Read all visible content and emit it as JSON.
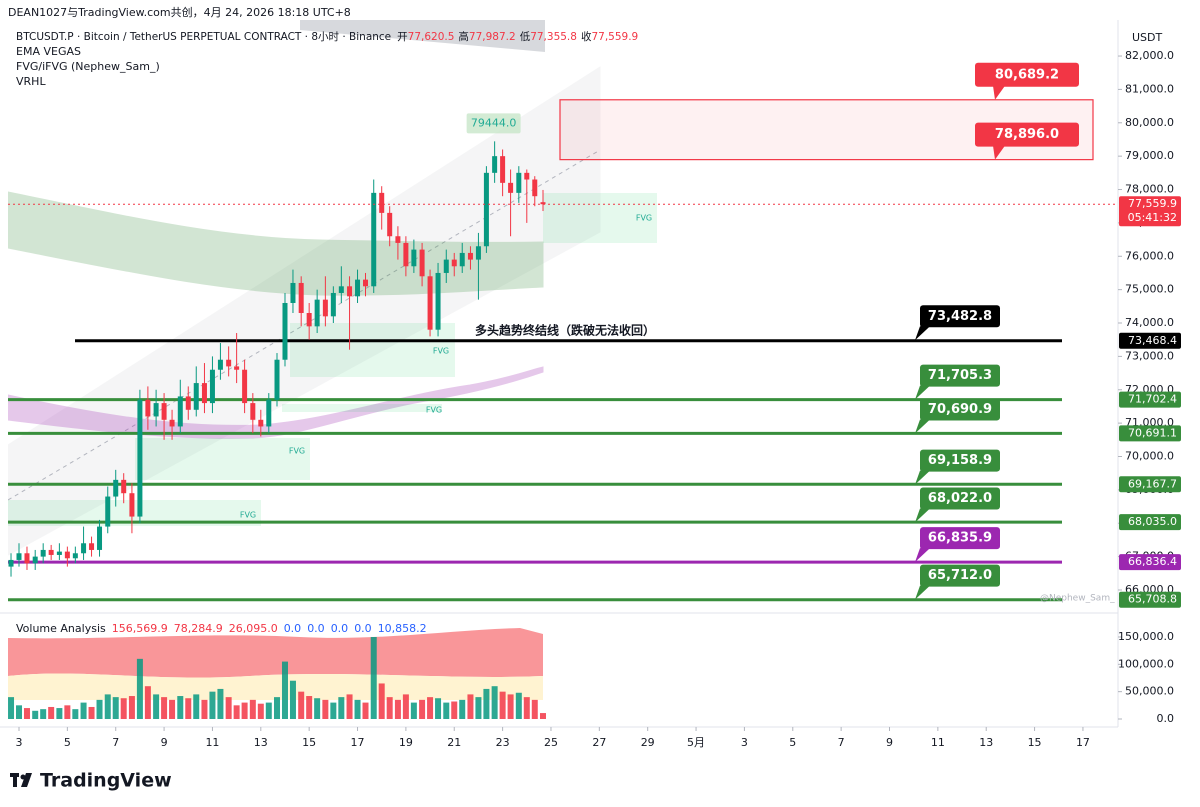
{
  "header": {
    "watermark": "DEAN1027与TradingView.com共创，4月 24, 2026 18:18 UTC+8",
    "symbol": "BTCUSDT.P · Bitcoin / TetherUS PERPETUAL CONTRACT · 8小时 · Binance",
    "ohlc": [
      {
        "label": "开",
        "value": "77,620.5"
      },
      {
        "label": "高",
        "value": "77,987.2"
      },
      {
        "label": "低",
        "value": "77,355.8"
      },
      {
        "label": "收",
        "value": "77,559.9"
      }
    ],
    "indicators": [
      "EMA VEGAS",
      "FVG/iFVG (Nephew_Sam_)",
      "VRHL"
    ],
    "currency": "USDT"
  },
  "chart_data": {
    "type": "candlestick",
    "up_color": "#089981",
    "down_color": "#f23645",
    "x": [
      2.67,
      3,
      3.33,
      3.67,
      4,
      4.33,
      4.67,
      5,
      5.33,
      5.67,
      6,
      6.33,
      6.67,
      7,
      7.33,
      7.67,
      8,
      8.33,
      8.67,
      9,
      9.33,
      9.67,
      10,
      10.33,
      10.67,
      11,
      11.33,
      11.67,
      12,
      12.33,
      12.67,
      13,
      13.33,
      13.67,
      14,
      14.33,
      14.67,
      15,
      15.33,
      15.67,
      16,
      16.33,
      16.67,
      17,
      17.33,
      17.67,
      18,
      18.33,
      18.67,
      19,
      19.33,
      19.67,
      20,
      20.33,
      20.67,
      21,
      21.33,
      21.67,
      22,
      22.33,
      22.67,
      23,
      23.33,
      23.67,
      24,
      24.33,
      24.67
    ],
    "open": [
      66700,
      66900,
      67100,
      66800,
      67000,
      67200,
      67050,
      67150,
      66950,
      67100,
      67400,
      67200,
      67900,
      68800,
      69300,
      68900,
      68200,
      71700,
      71200,
      71600,
      71100,
      70900,
      71800,
      71400,
      72200,
      71600,
      72600,
      72900,
      72700,
      72600,
      71600,
      71100,
      70900,
      71700,
      72900,
      74600,
      75200,
      74300,
      73900,
      74700,
      74200,
      74900,
      75100,
      74800,
      75300,
      75100,
      77900,
      77300,
      76600,
      76400,
      75700,
      76200,
      75400,
      73800,
      75500,
      75900,
      75700,
      76100,
      75900,
      76300,
      78500,
      79000,
      78200,
      77900,
      78500,
      78300,
      77620.5
    ],
    "high": [
      67100,
      67400,
      67300,
      67200,
      67400,
      67350,
      67400,
      67300,
      67300,
      67900,
      67600,
      68100,
      69100,
      69600,
      69500,
      69200,
      72000,
      72100,
      72000,
      71900,
      71400,
      72300,
      72100,
      72700,
      72800,
      73000,
      73400,
      73300,
      73700,
      72900,
      71900,
      71400,
      71900,
      73100,
      74900,
      75600,
      75400,
      74600,
      75000,
      75400,
      75100,
      75700,
      75400,
      75600,
      75500,
      78300,
      78100,
      77500,
      76900,
      76600,
      76500,
      76400,
      75600,
      75800,
      76200,
      76100,
      76400,
      76300,
      76700,
      78700,
      79444,
      79200,
      78600,
      78700,
      78600,
      78400,
      77987.2
    ],
    "low": [
      66400,
      66700,
      66600,
      66600,
      66800,
      66900,
      66900,
      66700,
      66800,
      66900,
      67000,
      67000,
      67700,
      68500,
      68600,
      67700,
      68000,
      70800,
      70900,
      70500,
      70500,
      70700,
      71100,
      71200,
      71300,
      71300,
      72300,
      72400,
      72200,
      71300,
      70700,
      70600,
      70700,
      71500,
      72700,
      74300,
      73900,
      73500,
      73700,
      73900,
      74000,
      74600,
      73200,
      74600,
      74800,
      74900,
      76800,
      76300,
      75900,
      75400,
      75500,
      75100,
      73600,
      73600,
      75200,
      75400,
      75500,
      75600,
      74700,
      76100,
      78200,
      77800,
      76600,
      77600,
      77000,
      77500,
      77355.8
    ],
    "close": [
      66900,
      67100,
      66800,
      67000,
      67200,
      67050,
      67150,
      66950,
      67100,
      67400,
      67200,
      67900,
      68800,
      69300,
      68900,
      68200,
      71700,
      71200,
      71600,
      71100,
      70900,
      71800,
      71400,
      72200,
      71600,
      72600,
      72900,
      72700,
      72600,
      71600,
      71100,
      70900,
      71700,
      72900,
      74600,
      75200,
      74300,
      73900,
      74700,
      74200,
      74900,
      75100,
      74800,
      75300,
      75100,
      77900,
      77300,
      76600,
      76400,
      75700,
      76200,
      75400,
      73800,
      75500,
      75900,
      75700,
      76100,
      75900,
      76300,
      78500,
      79000,
      78200,
      77900,
      78500,
      78300,
      77800,
      77559.9
    ],
    "volume": [
      40000,
      25000,
      20000,
      15000,
      18000,
      22000,
      20000,
      25000,
      18000,
      30000,
      22000,
      35000,
      45000,
      40000,
      38000,
      42000,
      110000,
      60000,
      45000,
      40000,
      35000,
      42000,
      38000,
      45000,
      35000,
      50000,
      55000,
      40000,
      25000,
      30000,
      35000,
      28000,
      30000,
      40000,
      105000,
      70000,
      50000,
      42000,
      38000,
      35000,
      30000,
      40000,
      45000,
      35000,
      30000,
      150000,
      65000,
      40000,
      35000,
      45000,
      30000,
      35000,
      40000,
      38000,
      30000,
      32000,
      35000,
      45000,
      40000,
      55000,
      60000,
      50000,
      45000,
      48000,
      40000,
      35000,
      10858.2
    ],
    "xlim": [
      2.545,
      48.45
    ],
    "ylim": [
      65490,
      83080
    ],
    "volume_ylim": [
      0,
      177400
    ],
    "xticks": [
      3,
      5,
      7,
      9,
      11,
      13,
      15,
      17,
      19,
      21,
      23,
      25,
      27,
      29,
      {
        "value": 31,
        "label": "5月"
      },
      {
        "value": 33,
        "label": "3"
      },
      {
        "value": 35,
        "label": "5"
      },
      {
        "value": 37,
        "label": "7"
      },
      {
        "value": 39,
        "label": "9"
      },
      {
        "value": 41,
        "label": "11"
      },
      {
        "value": 43,
        "label": "13"
      },
      {
        "value": 45,
        "label": "15"
      },
      {
        "value": 47,
        "label": "17"
      }
    ],
    "yticks": [
      {
        "value": 82000,
        "label": "82,000.0"
      },
      {
        "value": 81000,
        "label": "81,000.0"
      },
      {
        "value": 80000,
        "label": "80,000.0"
      },
      {
        "value": 79000,
        "label": "79,000.0"
      },
      {
        "value": 78000,
        "label": "78,000.0"
      },
      {
        "value": 77000,
        "label": "77,000.0"
      },
      {
        "value": 76000,
        "label": "76,000.0"
      },
      {
        "value": 75000,
        "label": "75,000.0"
      },
      {
        "value": 74000,
        "label": "74,000.0"
      },
      {
        "value": 73000,
        "label": "73,000.0"
      },
      {
        "value": 72000,
        "label": "72,000.0"
      },
      {
        "value": 71000,
        "label": "71,000.0"
      },
      {
        "value": 70000,
        "label": "70,000.0"
      },
      {
        "value": 69000,
        "label": "69,000.0"
      },
      {
        "value": 68000,
        "label": "68,000.0"
      },
      {
        "value": 67000,
        "label": "67,000.0"
      },
      {
        "value": 66000,
        "label": "66,000.0"
      }
    ],
    "volume_yticks": [
      {
        "value": 150000,
        "label": "150,000.0"
      },
      {
        "value": 100000,
        "label": "100,000.0"
      },
      {
        "value": 50000,
        "label": "50,000.0"
      },
      {
        "value": 0,
        "label": "0.0"
      }
    ],
    "price_line": {
      "value": 77559.9,
      "label": "77,559.9",
      "countdown": "05:41:32",
      "color": "#f23645"
    },
    "zone": {
      "top": {
        "value": 80689.2,
        "label": "80,689.2"
      },
      "bottom": {
        "value": 78896.0,
        "label": "78,896.0"
      },
      "color": "#f23645"
    },
    "levels": [
      {
        "tag": {
          "value": 73482.8,
          "label": "73,482.8"
        },
        "axis": {
          "value": 73468.4,
          "label": "73,468.4"
        },
        "color": "#000000"
      },
      {
        "tag": {
          "value": 71705.3,
          "label": "71,705.3"
        },
        "axis": {
          "value": 71702.4,
          "label": "71,702.4"
        },
        "color": "#388e3c"
      },
      {
        "tag": {
          "value": 70690.9,
          "label": "70,690.9"
        },
        "axis": {
          "value": 70691.1,
          "label": "70,691.1"
        },
        "color": "#388e3c"
      },
      {
        "tag": {
          "value": 69158.9,
          "label": "69,158.9"
        },
        "axis": {
          "value": 69167.7,
          "label": "69,167.7"
        },
        "color": "#388e3c"
      },
      {
        "tag": {
          "value": 68022.0,
          "label": "68,022.0"
        },
        "axis": {
          "value": 68035.0,
          "label": "68,035.0"
        },
        "color": "#388e3c"
      },
      {
        "tag": {
          "value": 66835.9,
          "label": "66,835.9"
        },
        "axis": {
          "value": 66836.4,
          "label": "66,836.4"
        },
        "color": "#9c27b0"
      },
      {
        "tag": {
          "value": 65712.0,
          "label": "65,712.0"
        },
        "axis": {
          "value": 65708.8,
          "label": "65,708.8"
        },
        "color": "#388e3c"
      }
    ],
    "high_annotation": {
      "value": 79444.0,
      "label": "79444.0"
    },
    "trend_line_label": "多头趋势终结线（跌破无法收回）",
    "fvg_labels": [
      "FVG",
      "FVG",
      "FVG",
      "FVG",
      "FVG"
    ],
    "credit": "@Nephew_Sam_"
  },
  "volume_panel": {
    "title": "Volume Analysis",
    "readouts": [
      {
        "text": "156,569.9",
        "color": "#f23645"
      },
      {
        "text": "78,284.9",
        "color": "#f23645"
      },
      {
        "text": "26,095.0",
        "color": "#f23645"
      },
      {
        "text": "0.0",
        "color": "#2962ff"
      },
      {
        "text": "0.0",
        "color": "#2962ff"
      },
      {
        "text": "0.0",
        "color": "#2962ff"
      },
      {
        "text": "0.0",
        "color": "#2962ff"
      },
      {
        "text": "10,858.2",
        "color": "#2962ff"
      }
    ]
  },
  "footer": {
    "logo": "TradingView"
  }
}
